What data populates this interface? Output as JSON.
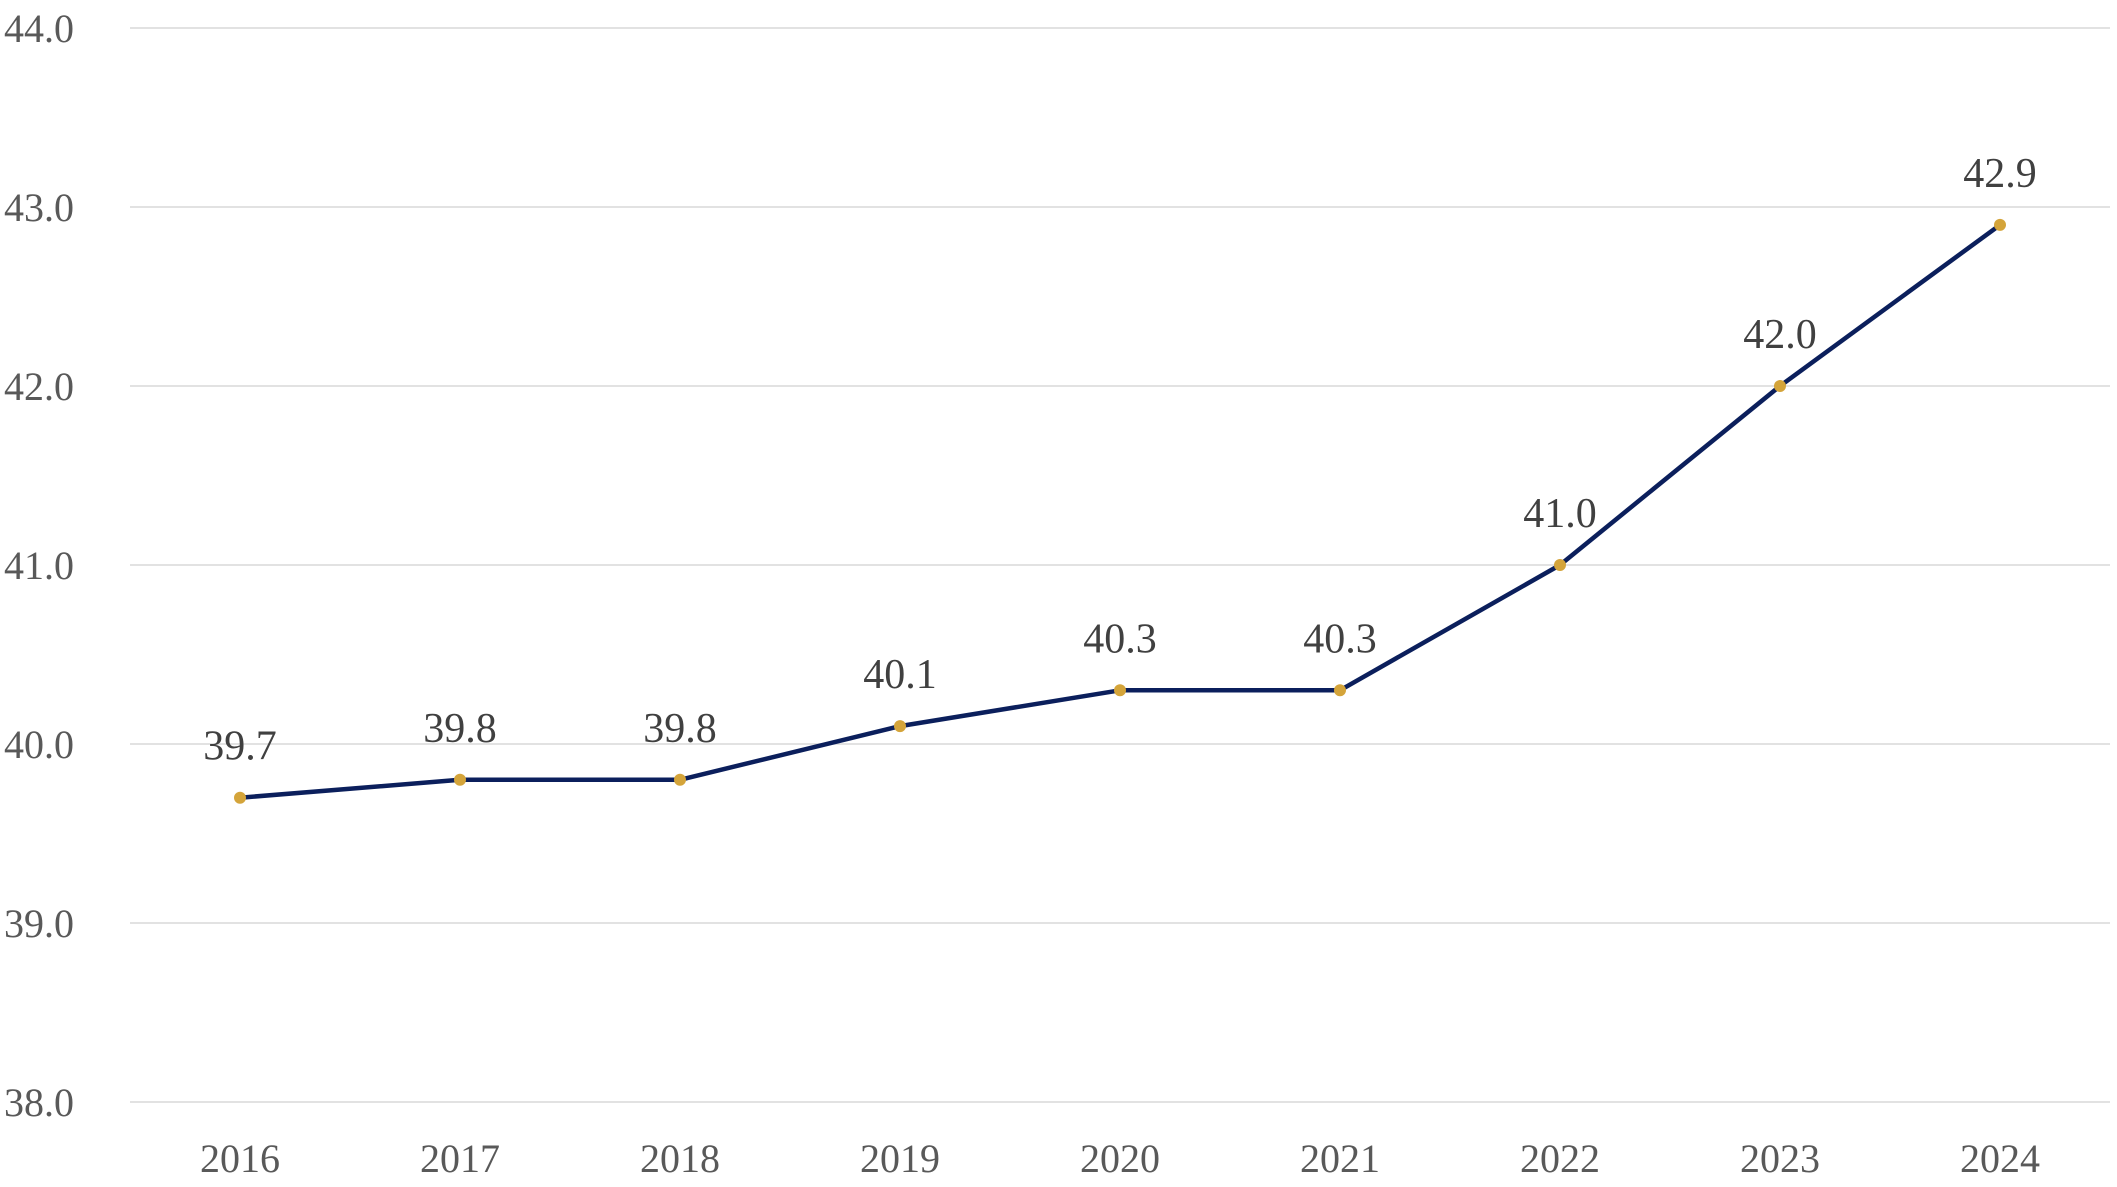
{
  "chart_data": {
    "type": "line",
    "title": "",
    "xlabel": "",
    "ylabel": "",
    "categories": [
      "2016",
      "2017",
      "2018",
      "2019",
      "2020",
      "2021",
      "2022",
      "2023",
      "2024"
    ],
    "series": [
      {
        "values": [
          39.7,
          39.8,
          39.8,
          40.1,
          40.3,
          40.3,
          41.0,
          42.0,
          42.9
        ],
        "labels": [
          "39.7",
          "39.8",
          "39.8",
          "40.1",
          "40.3",
          "40.3",
          "41.0",
          "42.0",
          "42.9"
        ],
        "line_color": "#0b1f5c",
        "marker_color": "#d4a43a"
      }
    ],
    "yticks": [
      "38.0",
      "39.0",
      "40.0",
      "41.0",
      "42.0",
      "43.0",
      "44.0"
    ],
    "ylim": [
      38.0,
      44.0
    ],
    "grid": true,
    "legend": "none"
  }
}
